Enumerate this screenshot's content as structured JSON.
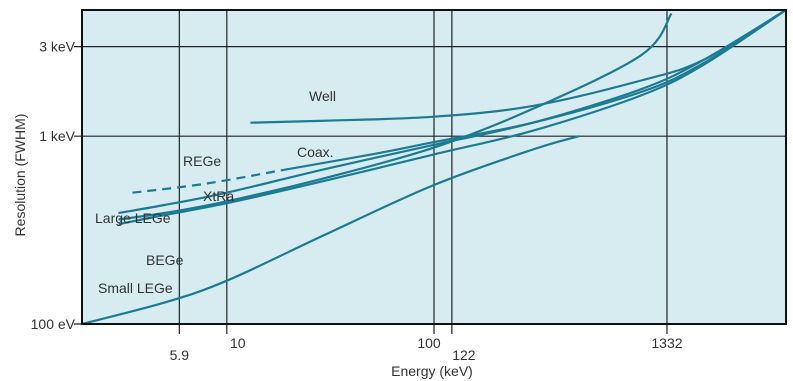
{
  "chart_data": {
    "type": "line",
    "xlabel": "Energy (keV)",
    "ylabel": "Resolution (FWHM)",
    "x_scale": "log",
    "y_scale": "log",
    "xlim": [
      2,
      5000
    ],
    "ylim": [
      0.1,
      4.7
    ],
    "x_ticks": [
      {
        "value": 5.9,
        "label": "5.9"
      },
      {
        "value": 10,
        "label": "10"
      },
      {
        "value": 100,
        "label": "100"
      },
      {
        "value": 122,
        "label": "122"
      },
      {
        "value": 1332,
        "label": "1332"
      }
    ],
    "y_ticks": [
      {
        "value": 0.1,
        "label": "100 eV"
      },
      {
        "value": 1,
        "label": "1 keV"
      },
      {
        "value": 3,
        "label": "3 keV"
      }
    ],
    "grid": true,
    "colors": {
      "plot_background": "#d7ecf1",
      "line": "#1b7b93",
      "grid": "#222222",
      "frame": "#111111"
    },
    "series": [
      {
        "name": "Well",
        "style": "solid",
        "x": [
          13,
          30,
          100,
          300,
          1000,
          2000,
          5000
        ],
        "y": [
          1.18,
          1.21,
          1.27,
          1.45,
          1.98,
          2.55,
          4.7
        ]
      },
      {
        "name": "Coax.",
        "style": "solid",
        "x": [
          20,
          50,
          100,
          300,
          1000,
          2000,
          5000
        ],
        "y": [
          0.67,
          0.8,
          0.93,
          1.18,
          1.72,
          2.45,
          4.7
        ]
      },
      {
        "name": "REGe",
        "style": "dashed",
        "x": [
          3.5,
          8,
          20
        ],
        "y": [
          0.5,
          0.56,
          0.67
        ]
      },
      {
        "name": "XtRa",
        "style": "solid",
        "x": [
          3,
          5,
          10,
          30,
          100,
          300,
          1000,
          1400
        ],
        "y": [
          0.36,
          0.39,
          0.45,
          0.6,
          0.87,
          1.4,
          2.7,
          4.5
        ]
      },
      {
        "name": "Large LEGe",
        "style": "solid",
        "x": [
          3,
          5,
          10,
          30,
          100,
          300,
          1000,
          2000,
          5000
        ],
        "y": [
          0.39,
          0.43,
          0.5,
          0.67,
          0.9,
          1.18,
          1.78,
          2.55,
          4.7
        ]
      },
      {
        "name": "BEGe",
        "style": "solid",
        "x": [
          3,
          5,
          10,
          30,
          100,
          300,
          1000,
          2000,
          5000
        ],
        "y": [
          0.34,
          0.38,
          0.44,
          0.58,
          0.8,
          1.07,
          1.65,
          2.4,
          4.7
        ]
      },
      {
        "name": "Small LEGe",
        "style": "solid",
        "x": [
          2,
          5,
          10,
          30,
          100,
          300,
          500
        ],
        "y": [
          0.1,
          0.13,
          0.17,
          0.3,
          0.55,
          0.85,
          1.0
        ]
      }
    ],
    "series_labels": [
      "Well",
      "Coax.",
      "REGe",
      "XtRa",
      "Large LEGe",
      "BEGe",
      "Small LEGe"
    ]
  }
}
